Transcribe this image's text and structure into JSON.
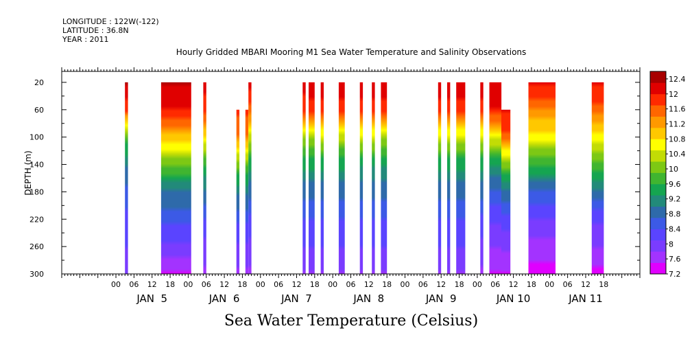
{
  "meta": {
    "longitude": "LONGITUDE : 122W(-122)",
    "latitude": "LATITUDE : 36.8N",
    "year": "YEAR : 2011"
  },
  "chart_data": {
    "type": "heatmap",
    "title": "Hourly Gridded MBARI Mooring M1 Sea Water Temperature and Salinity Observations",
    "colorbar_title": "Sea Water Temperature (Celsius)",
    "ylabel": "DEPTH (m)",
    "xlabel": "",
    "ylim": [
      300,
      4
    ],
    "xlim_hours": [
      -18,
      174
    ],
    "y_ticks": [
      20,
      60,
      100,
      140,
      180,
      220,
      260,
      300
    ],
    "x_hour_ticks": [
      "00",
      "06",
      "12",
      "18",
      "00",
      "06",
      "12",
      "18",
      "00",
      "06",
      "12",
      "18",
      "00",
      "06",
      "12",
      "18",
      "00",
      "06",
      "12",
      "18",
      "00",
      "06",
      "12",
      "18",
      "00",
      "06",
      "12",
      "18"
    ],
    "day_labels": [
      "JAN  5",
      "JAN  6",
      "JAN  7",
      "JAN  8",
      "JAN  9",
      "JAN 10",
      "JAN 11"
    ],
    "colorbar": {
      "range": [
        7.2,
        12.6
      ],
      "levels": [
        7.2,
        7.6,
        8,
        8.4,
        8.8,
        9.2,
        9.6,
        10,
        10.4,
        10.8,
        11.2,
        11.6,
        12,
        12.4
      ],
      "colors": [
        "#e000ff",
        "#a333ff",
        "#7a3cff",
        "#5a44ff",
        "#3c5ae6",
        "#2e6aaa",
        "#228a7a",
        "#15a550",
        "#40b530",
        "#7dc814",
        "#c2dc05",
        "#ffff00",
        "#ffc800",
        "#ff9900",
        "#ff6600",
        "#ff2a00",
        "#e00000",
        "#a80000"
      ]
    },
    "segments": [
      {
        "start_hour": 3,
        "end_hour": 4,
        "top_depth": 20,
        "profile": [
          12.3,
          11.8,
          9.8,
          9.0,
          8.6,
          8.3,
          8.1,
          7.9
        ]
      },
      {
        "start_hour": 15,
        "end_hour": 25,
        "top_depth": 20,
        "profile": [
          12.3,
          12.0,
          11.0,
          9.9,
          9.0,
          8.5,
          8.0,
          7.5
        ]
      },
      {
        "start_hour": 29,
        "end_hour": 30,
        "top_depth": 20,
        "profile": [
          12.2,
          11.8,
          10.8,
          9.6,
          8.9,
          8.4,
          8.0,
          7.7
        ]
      },
      {
        "start_hour": 40,
        "end_hour": 41,
        "top_depth": 60,
        "profile": [
          11.8,
          11.5,
          10.4,
          9.4,
          8.8,
          8.3,
          8.0,
          7.7
        ]
      },
      {
        "start_hour": 43,
        "end_hour": 44,
        "top_depth": 60,
        "profile": [
          11.8,
          11.5,
          10.3,
          9.4,
          8.8,
          8.3,
          8.0,
          7.7
        ]
      },
      {
        "start_hour": 44,
        "end_hour": 45,
        "top_depth": 20,
        "profile": [
          12.2,
          11.6,
          10.4,
          9.4,
          8.8,
          8.3,
          8.0,
          7.7
        ]
      },
      {
        "start_hour": 62,
        "end_hour": 63,
        "top_depth": 20,
        "profile": [
          12.2,
          11.8,
          10.2,
          9.4,
          8.8,
          8.4,
          8.1,
          7.8
        ]
      },
      {
        "start_hour": 64,
        "end_hour": 66,
        "top_depth": 20,
        "profile": [
          12.2,
          11.9,
          10.2,
          9.4,
          8.8,
          8.4,
          8.1,
          7.8
        ]
      },
      {
        "start_hour": 68,
        "end_hour": 69,
        "top_depth": 20,
        "profile": [
          12.2,
          11.9,
          10.4,
          9.4,
          8.8,
          8.4,
          8.1,
          7.8
        ]
      },
      {
        "start_hour": 74,
        "end_hour": 76,
        "top_depth": 20,
        "profile": [
          12.2,
          11.9,
          10.3,
          9.4,
          8.8,
          8.4,
          8.1,
          7.8
        ]
      },
      {
        "start_hour": 81,
        "end_hour": 82,
        "top_depth": 20,
        "profile": [
          12.2,
          11.9,
          10.4,
          9.3,
          8.8,
          8.4,
          8.1,
          7.8
        ]
      },
      {
        "start_hour": 85,
        "end_hour": 86,
        "top_depth": 20,
        "profile": [
          12.2,
          11.9,
          10.4,
          9.3,
          8.8,
          8.4,
          8.1,
          7.8
        ]
      },
      {
        "start_hour": 88,
        "end_hour": 90,
        "top_depth": 20,
        "profile": [
          12.2,
          11.9,
          10.2,
          9.3,
          8.8,
          8.4,
          8.1,
          7.8
        ]
      },
      {
        "start_hour": 107,
        "end_hour": 108,
        "top_depth": 20,
        "profile": [
          12.2,
          11.9,
          10.4,
          9.4,
          8.8,
          8.4,
          8.1,
          7.8
        ]
      },
      {
        "start_hour": 110,
        "end_hour": 111,
        "top_depth": 20,
        "profile": [
          12.2,
          11.9,
          10.4,
          9.4,
          8.8,
          8.4,
          8.1,
          7.8
        ]
      },
      {
        "start_hour": 113,
        "end_hour": 116,
        "top_depth": 20,
        "profile": [
          12.2,
          11.9,
          10.4,
          9.4,
          8.8,
          8.4,
          8.1,
          7.8
        ]
      },
      {
        "start_hour": 121,
        "end_hour": 122,
        "top_depth": 20,
        "profile": [
          12.2,
          11.9,
          10.4,
          9.4,
          8.8,
          8.3,
          8.0,
          7.7
        ]
      },
      {
        "start_hour": 124,
        "end_hour": 128,
        "top_depth": 20,
        "profile": [
          12.2,
          12.0,
          10.6,
          9.3,
          8.6,
          8.2,
          7.8,
          7.5
        ]
      },
      {
        "start_hour": 128,
        "end_hour": 131,
        "top_depth": 60,
        "profile": [
          12.0,
          11.7,
          10.5,
          9.3,
          8.6,
          8.2,
          7.8,
          7.5
        ]
      },
      {
        "start_hour": 137,
        "end_hour": 146,
        "top_depth": 20,
        "profile": [
          12.1,
          11.4,
          10.6,
          9.6,
          8.7,
          8.1,
          7.7,
          7.3
        ]
      },
      {
        "start_hour": 158,
        "end_hour": 162,
        "top_depth": 20,
        "profile": [
          12.0,
          11.6,
          10.6,
          9.8,
          8.9,
          8.2,
          7.8,
          7.4
        ]
      }
    ]
  }
}
